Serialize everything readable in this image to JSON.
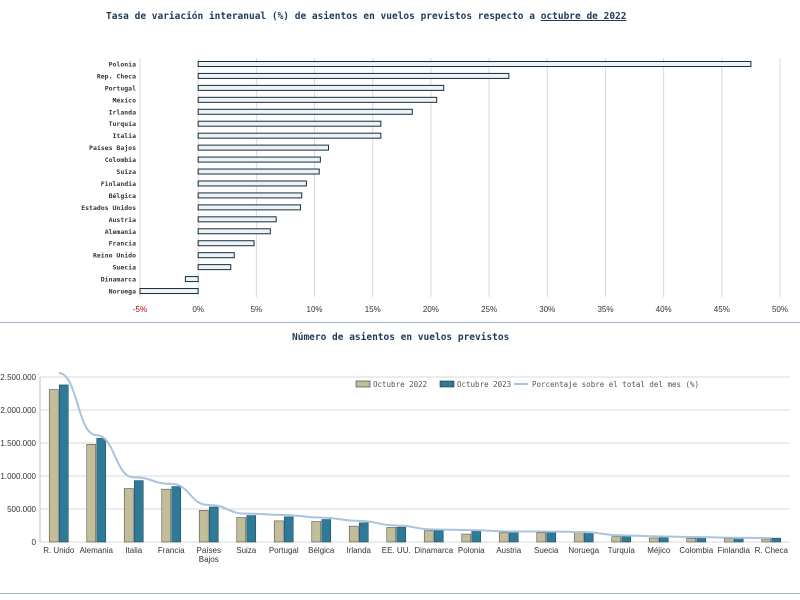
{
  "charts": {
    "top": {
      "title_prefix": "Tasa de variación interanual (%) de asientos en vuelos previstos respecto a ",
      "title_highlight": "octubre de 2022"
    },
    "bottom": {
      "title": "Número de asientos en vuelos previstos"
    }
  },
  "colors": {
    "bar_fill": "#eaf3f6",
    "bar_edge": "#1c2c3a",
    "grid": "#d9d9d9",
    "negative_tick": "#c00000",
    "series_2022": "#c3bd99",
    "series_2023": "#2e7a97",
    "series_pct": "#a9c4de"
  },
  "chart_data": [
    {
      "type": "bar",
      "orientation": "horizontal",
      "title": "Tasa de variación interanual (%) de asientos en vuelos previstos respecto a octubre de 2022",
      "categories": [
        "Polonia",
        "Rep. Checa",
        "Portugal",
        "México",
        "Irlanda",
        "Turquía",
        "Italia",
        "Países Bajos",
        "Colombia",
        "Suiza",
        "Finlandia",
        "Bélgica",
        "Estados Unidos",
        "Austria",
        "Alemania",
        "Francia",
        "Reino Unido",
        "Suecia",
        "Dinamarca",
        "Noruega"
      ],
      "values": [
        47.5,
        26.7,
        21.1,
        20.5,
        18.4,
        15.7,
        15.7,
        11.2,
        10.5,
        10.4,
        9.3,
        8.9,
        8.8,
        6.7,
        6.2,
        4.8,
        3.1,
        2.8,
        -1.1,
        -5.0
      ],
      "xlim": [
        -5,
        50
      ],
      "xticks": [
        "-5%",
        "0%",
        "5%",
        "10%",
        "15%",
        "20%",
        "25%",
        "30%",
        "35%",
        "40%",
        "45%",
        "50%"
      ],
      "grid": true
    },
    {
      "type": "bar",
      "title": "Número de asientos en vuelos previstos",
      "categories": [
        "R. Unido",
        "Alemania",
        "Italia",
        "Francia",
        "Países Bajos",
        "Suiza",
        "Portugal",
        "Bélgica",
        "Irlanda",
        "EE. UU.",
        "Dinamarca",
        "Polonia",
        "Austria",
        "Suecia",
        "Noruega",
        "Turquía",
        "Méjico",
        "Colombia",
        "Finlandia",
        "R. Checa"
      ],
      "series": [
        {
          "name": "Octubre 2022",
          "values": [
            2310000,
            1480000,
            810000,
            800000,
            480000,
            370000,
            320000,
            310000,
            240000,
            220000,
            170000,
            120000,
            140000,
            140000,
            140000,
            80000,
            60000,
            55000,
            50000,
            45000
          ]
        },
        {
          "name": "Octubre 2023",
          "values": [
            2380000,
            1570000,
            930000,
            840000,
            530000,
            400000,
            380000,
            340000,
            290000,
            225000,
            170000,
            165000,
            150000,
            145000,
            130000,
            90000,
            75000,
            65000,
            58000,
            58000
          ]
        },
        {
          "name": "Porcentaje sobre el total del mes (%)",
          "type": "line",
          "values": [
            2560000,
            1620000,
            980000,
            880000,
            560000,
            430000,
            410000,
            370000,
            320000,
            250000,
            190000,
            180000,
            160000,
            160000,
            150000,
            100000,
            85000,
            75000,
            65000,
            60000
          ]
        }
      ],
      "ylim": [
        0,
        2500000
      ],
      "yticks": [
        "0",
        "500.000",
        "1.000.000",
        "1.500.000",
        "2.000.000",
        "2.500.000"
      ],
      "legend": "top-right",
      "grid": true
    }
  ]
}
